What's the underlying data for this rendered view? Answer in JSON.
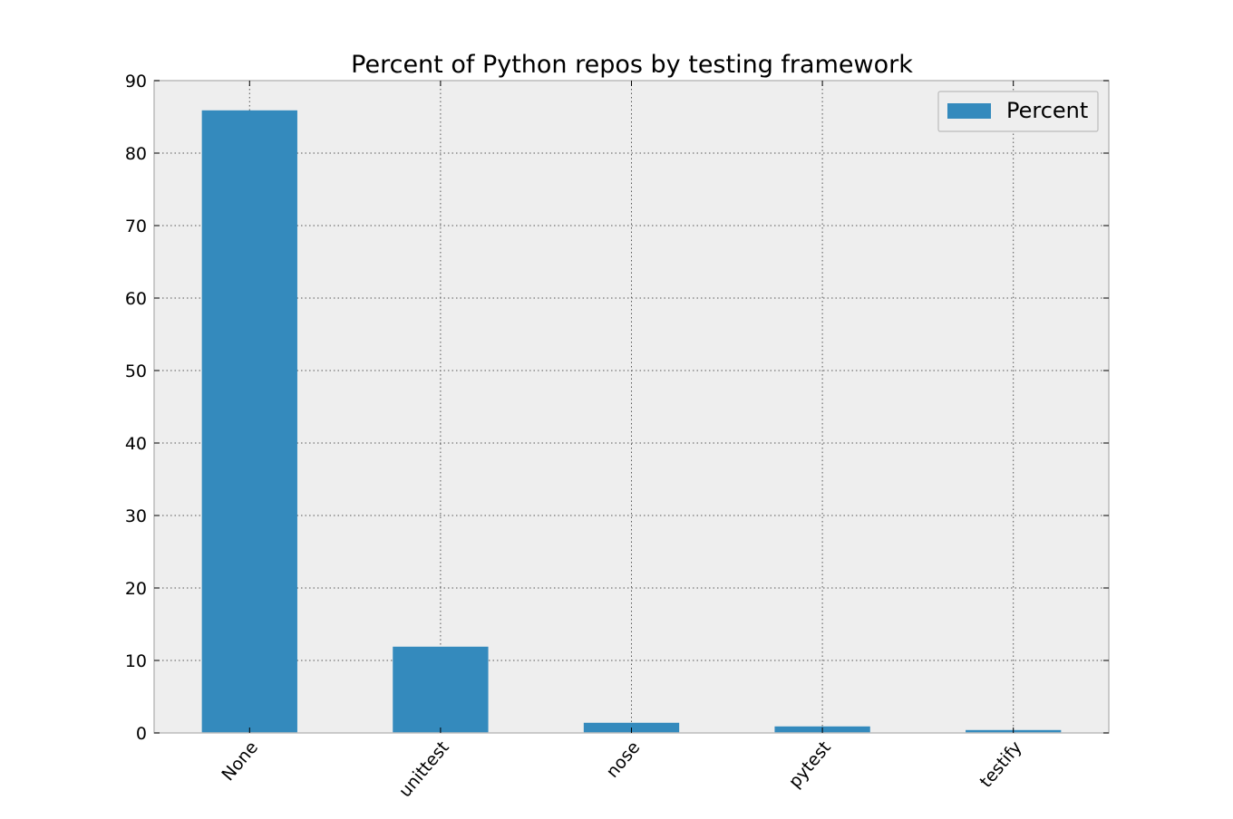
{
  "chart_data": {
    "type": "bar",
    "title": "Percent of Python repos by testing framework",
    "xlabel": "",
    "ylabel": "",
    "categories": [
      "None",
      "unittest",
      "nose",
      "pytest",
      "testify"
    ],
    "series": [
      {
        "name": "Percent",
        "values": [
          85.9,
          11.9,
          1.4,
          0.9,
          0.4
        ],
        "color": "#348abd"
      }
    ],
    "ylim": [
      0,
      90
    ],
    "yticks": [
      "0",
      "10",
      "20",
      "30",
      "40",
      "50",
      "60",
      "70",
      "80",
      "90"
    ],
    "grid": true,
    "legend_position": "top-right",
    "plot_background": "#eeeeee",
    "grid_color": "#555555",
    "axis_color": "#bcbcbc"
  }
}
